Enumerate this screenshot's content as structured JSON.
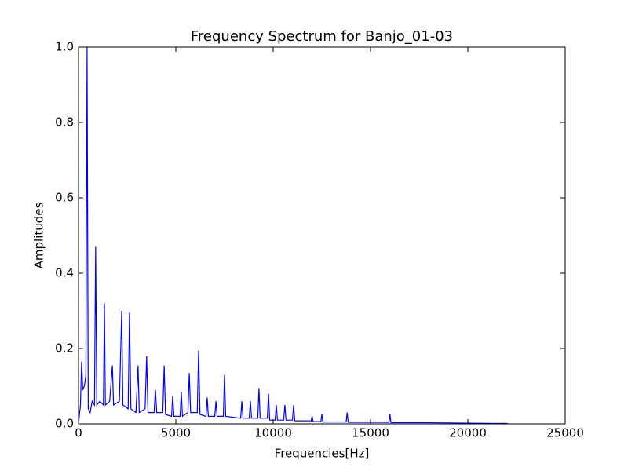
{
  "chart_data": {
    "type": "line",
    "title": "Frequency Spectrum for Banjo_01-03",
    "x_label": "Frequencies[Hz]",
    "y_label": "Amplitudes",
    "xlim": [
      0,
      25000
    ],
    "xticks": [
      0,
      5000,
      10000,
      15000,
      20000,
      25000
    ],
    "ylim": [
      0,
      1
    ],
    "yticks": [
      {
        "value": 0,
        "label": "0.0"
      },
      0.2,
      0.4,
      0.6,
      0.8,
      {
        "value": 1,
        "label": "1.0"
      }
    ],
    "grid": false,
    "series": [
      {
        "color": "#0000ff",
        "x": [
          0,
          100,
          160,
          220,
          300,
          380,
          440,
          500,
          600,
          700,
          820,
          880,
          940,
          1100,
          1280,
          1330,
          1380,
          1600,
          1740,
          1800,
          2100,
          2220,
          2280,
          2550,
          2620,
          2690,
          2950,
          3060,
          3120,
          3420,
          3500,
          3570,
          3880,
          3950,
          4020,
          4330,
          4400,
          4470,
          4780,
          4840,
          4900,
          5220,
          5280,
          5340,
          5620,
          5690,
          5760,
          6100,
          6170,
          6240,
          6550,
          6610,
          6670,
          7000,
          7060,
          7120,
          7440,
          7500,
          7560,
          8330,
          8390,
          8450,
          8770,
          8830,
          8890,
          9210,
          9270,
          9330,
          9700,
          9760,
          9820,
          10100,
          10160,
          10220,
          10540,
          10600,
          10660,
          10990,
          11050,
          11110,
          11950,
          12000,
          12050,
          12450,
          12500,
          12550,
          13750,
          13800,
          13850,
          15950,
          16000,
          16050,
          18000,
          20000,
          22050
        ],
        "values": [
          0.0,
          0.05,
          0.165,
          0.09,
          0.1,
          0.13,
          1.0,
          0.04,
          0.03,
          0.06,
          0.05,
          0.47,
          0.05,
          0.06,
          0.05,
          0.32,
          0.05,
          0.06,
          0.155,
          0.05,
          0.06,
          0.3,
          0.05,
          0.04,
          0.295,
          0.04,
          0.03,
          0.155,
          0.03,
          0.04,
          0.18,
          0.03,
          0.03,
          0.09,
          0.03,
          0.03,
          0.155,
          0.025,
          0.02,
          0.075,
          0.02,
          0.02,
          0.085,
          0.02,
          0.03,
          0.135,
          0.03,
          0.03,
          0.195,
          0.025,
          0.02,
          0.07,
          0.02,
          0.02,
          0.06,
          0.02,
          0.02,
          0.13,
          0.02,
          0.015,
          0.06,
          0.015,
          0.015,
          0.06,
          0.015,
          0.015,
          0.095,
          0.015,
          0.015,
          0.08,
          0.01,
          0.01,
          0.05,
          0.01,
          0.01,
          0.05,
          0.01,
          0.01,
          0.05,
          0.008,
          0.008,
          0.02,
          0.006,
          0.006,
          0.025,
          0.005,
          0.005,
          0.03,
          0.004,
          0.004,
          0.025,
          0.003,
          0.003,
          0.002,
          0.001
        ]
      }
    ]
  }
}
